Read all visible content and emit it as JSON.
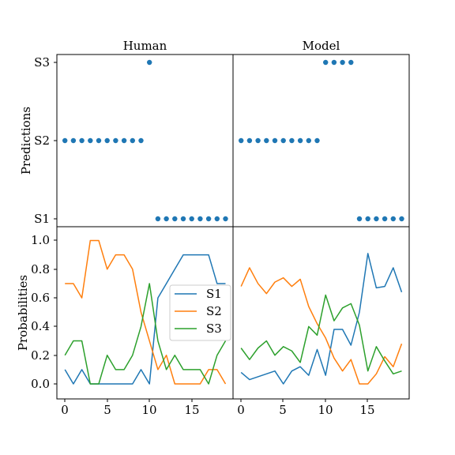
{
  "chart_data": [
    {
      "panel": "top-left",
      "type": "scatter",
      "title": "Human",
      "ylabel": "Predictions",
      "categories_y": [
        "S1",
        "S2",
        "S3"
      ],
      "color": "#1f77b4",
      "points": [
        [
          0,
          1
        ],
        [
          1,
          1
        ],
        [
          2,
          1
        ],
        [
          3,
          1
        ],
        [
          4,
          1
        ],
        [
          5,
          1
        ],
        [
          6,
          1
        ],
        [
          7,
          1
        ],
        [
          8,
          1
        ],
        [
          9,
          1
        ],
        [
          10,
          2
        ],
        [
          11,
          0
        ],
        [
          12,
          0
        ],
        [
          13,
          0
        ],
        [
          14,
          0
        ],
        [
          15,
          0
        ],
        [
          16,
          0
        ],
        [
          17,
          0
        ],
        [
          18,
          0
        ],
        [
          19,
          0
        ]
      ]
    },
    {
      "panel": "top-right",
      "type": "scatter",
      "title": "Model",
      "color": "#1f77b4",
      "points": [
        [
          0,
          1
        ],
        [
          1,
          1
        ],
        [
          2,
          1
        ],
        [
          3,
          1
        ],
        [
          4,
          1
        ],
        [
          5,
          1
        ],
        [
          6,
          1
        ],
        [
          7,
          1
        ],
        [
          8,
          1
        ],
        [
          9,
          1
        ],
        [
          10,
          2
        ],
        [
          11,
          2
        ],
        [
          12,
          2
        ],
        [
          13,
          2
        ],
        [
          14,
          0
        ],
        [
          15,
          0
        ],
        [
          16,
          0
        ],
        [
          17,
          0
        ],
        [
          18,
          0
        ],
        [
          19,
          0
        ]
      ]
    },
    {
      "panel": "bottom-left",
      "type": "line",
      "ylabel": "Probabilities",
      "x": [
        0,
        1,
        2,
        3,
        4,
        5,
        6,
        7,
        8,
        9,
        10,
        11,
        12,
        13,
        14,
        15,
        16,
        17,
        18,
        19
      ],
      "xticks": [
        "0",
        "5",
        "10",
        "15"
      ],
      "ylim": [
        -0.1,
        1.1
      ],
      "yticks": [
        "0.0",
        "0.2",
        "0.4",
        "0.6",
        "0.8",
        "1.0"
      ],
      "legend_position": "center-right",
      "series": [
        {
          "name": "S1",
          "color": "#1f77b4",
          "values": [
            0.1,
            0.0,
            0.1,
            0.0,
            0.0,
            0.0,
            0.0,
            0.0,
            0.0,
            0.1,
            0.0,
            0.6,
            0.7,
            0.8,
            0.9,
            0.9,
            0.9,
            0.9,
            0.7,
            0.7
          ]
        },
        {
          "name": "S2",
          "color": "#ff7f0e",
          "values": [
            0.7,
            0.7,
            0.6,
            1.0,
            1.0,
            0.8,
            0.9,
            0.9,
            0.8,
            0.5,
            0.3,
            0.1,
            0.2,
            0.0,
            0.0,
            0.0,
            0.0,
            0.1,
            0.1,
            0.0
          ]
        },
        {
          "name": "S3",
          "color": "#2ca02c",
          "values": [
            0.2,
            0.3,
            0.3,
            0.0,
            0.0,
            0.2,
            0.1,
            0.1,
            0.2,
            0.4,
            0.7,
            0.3,
            0.1,
            0.2,
            0.1,
            0.1,
            0.1,
            0.0,
            0.2,
            0.3
          ]
        }
      ]
    },
    {
      "panel": "bottom-right",
      "type": "line",
      "x": [
        0,
        1,
        2,
        3,
        4,
        5,
        6,
        7,
        8,
        9,
        10,
        11,
        12,
        13,
        14,
        15,
        16,
        17,
        18,
        19
      ],
      "xticks": [
        "0",
        "5",
        "10",
        "15"
      ],
      "series": [
        {
          "name": "S1",
          "color": "#1f77b4",
          "values": [
            0.08,
            0.03,
            0.05,
            0.07,
            0.09,
            0.0,
            0.09,
            0.12,
            0.06,
            0.24,
            0.06,
            0.38,
            0.38,
            0.27,
            0.5,
            0.91,
            0.67,
            0.68,
            0.81,
            0.64
          ]
        },
        {
          "name": "S2",
          "color": "#ff7f0e",
          "values": [
            0.68,
            0.81,
            0.7,
            0.63,
            0.71,
            0.74,
            0.68,
            0.73,
            0.54,
            0.42,
            0.32,
            0.18,
            0.09,
            0.17,
            0.0,
            0.0,
            0.07,
            0.19,
            0.12,
            0.28
          ]
        },
        {
          "name": "S3",
          "color": "#2ca02c",
          "values": [
            0.25,
            0.17,
            0.25,
            0.3,
            0.2,
            0.26,
            0.23,
            0.15,
            0.4,
            0.34,
            0.62,
            0.44,
            0.53,
            0.56,
            0.41,
            0.09,
            0.26,
            0.16,
            0.07,
            0.09
          ]
        }
      ]
    }
  ]
}
